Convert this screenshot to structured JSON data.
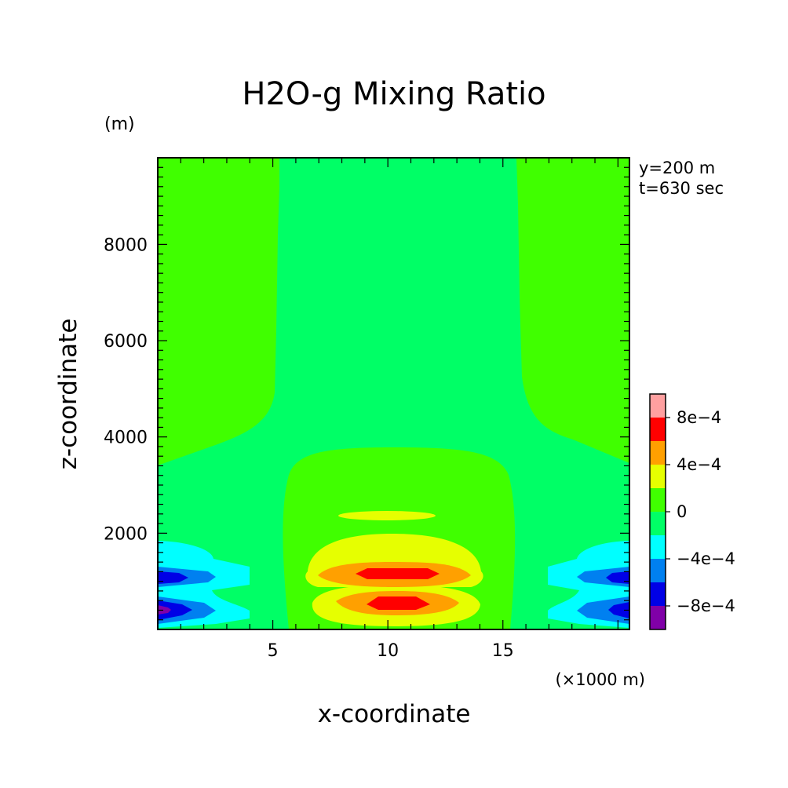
{
  "chart_data": {
    "type": "contour",
    "title": "H2O-g Mixing Ratio",
    "xlabel": "x-coordinate",
    "ylabel": "z-coordinate",
    "x_unit": "(×1000 m)",
    "y_unit": "(m)",
    "annotations": [
      "y=200 m",
      "t=630 sec"
    ],
    "xlim": [
      0,
      20.5
    ],
    "ylim": [
      0,
      9800
    ],
    "x_ticks": [
      5,
      10,
      15
    ],
    "x_tick_labels": [
      "5",
      "10",
      "15"
    ],
    "y_ticks": [
      2000,
      4000,
      6000,
      8000
    ],
    "y_tick_labels": [
      "2000",
      "4000",
      "6000",
      "8000"
    ],
    "colorbar": {
      "levels": [
        -0.001,
        -0.0008,
        -0.0006,
        -0.0004,
        -0.0002,
        0,
        0.0002,
        0.0004,
        0.0006,
        0.0008,
        0.001
      ],
      "colors_bottom_to_top": [
        "#8000a8",
        "#0000e6",
        "#0080f0",
        "#00ffff",
        "#00ff66",
        "#40ff00",
        "#e6ff00",
        "#ffa000",
        "#ff0000",
        "#ffa0a0"
      ],
      "tick_values": [
        -0.0008,
        -0.0004,
        0,
        0.0004,
        0.0008
      ],
      "tick_labels": [
        "−8e−4",
        "−4e−4",
        "0",
        "4e−4",
        "8e−4"
      ]
    },
    "background_level_color": "#00ff66",
    "regions": [
      {
        "level": "0 to 2e-4",
        "color": "#40ff00",
        "description": "outer upper columns and central lower dome"
      },
      {
        "level": "2e-4 to 4e-4",
        "color": "#e6ff00",
        "description": "central bands near z=600-2500"
      },
      {
        "level": "4e-4 to 6e-4",
        "color": "#ffa000",
        "description": "central cores near z=1300 and z=600"
      },
      {
        "level": "6e-4 to 8e-4",
        "color": "#ff0000",
        "description": "central maxima near x=10"
      },
      {
        "level": "below 0",
        "color": "#00ffff",
        "description": "lateral boundary lobes below z=2000"
      }
    ]
  }
}
